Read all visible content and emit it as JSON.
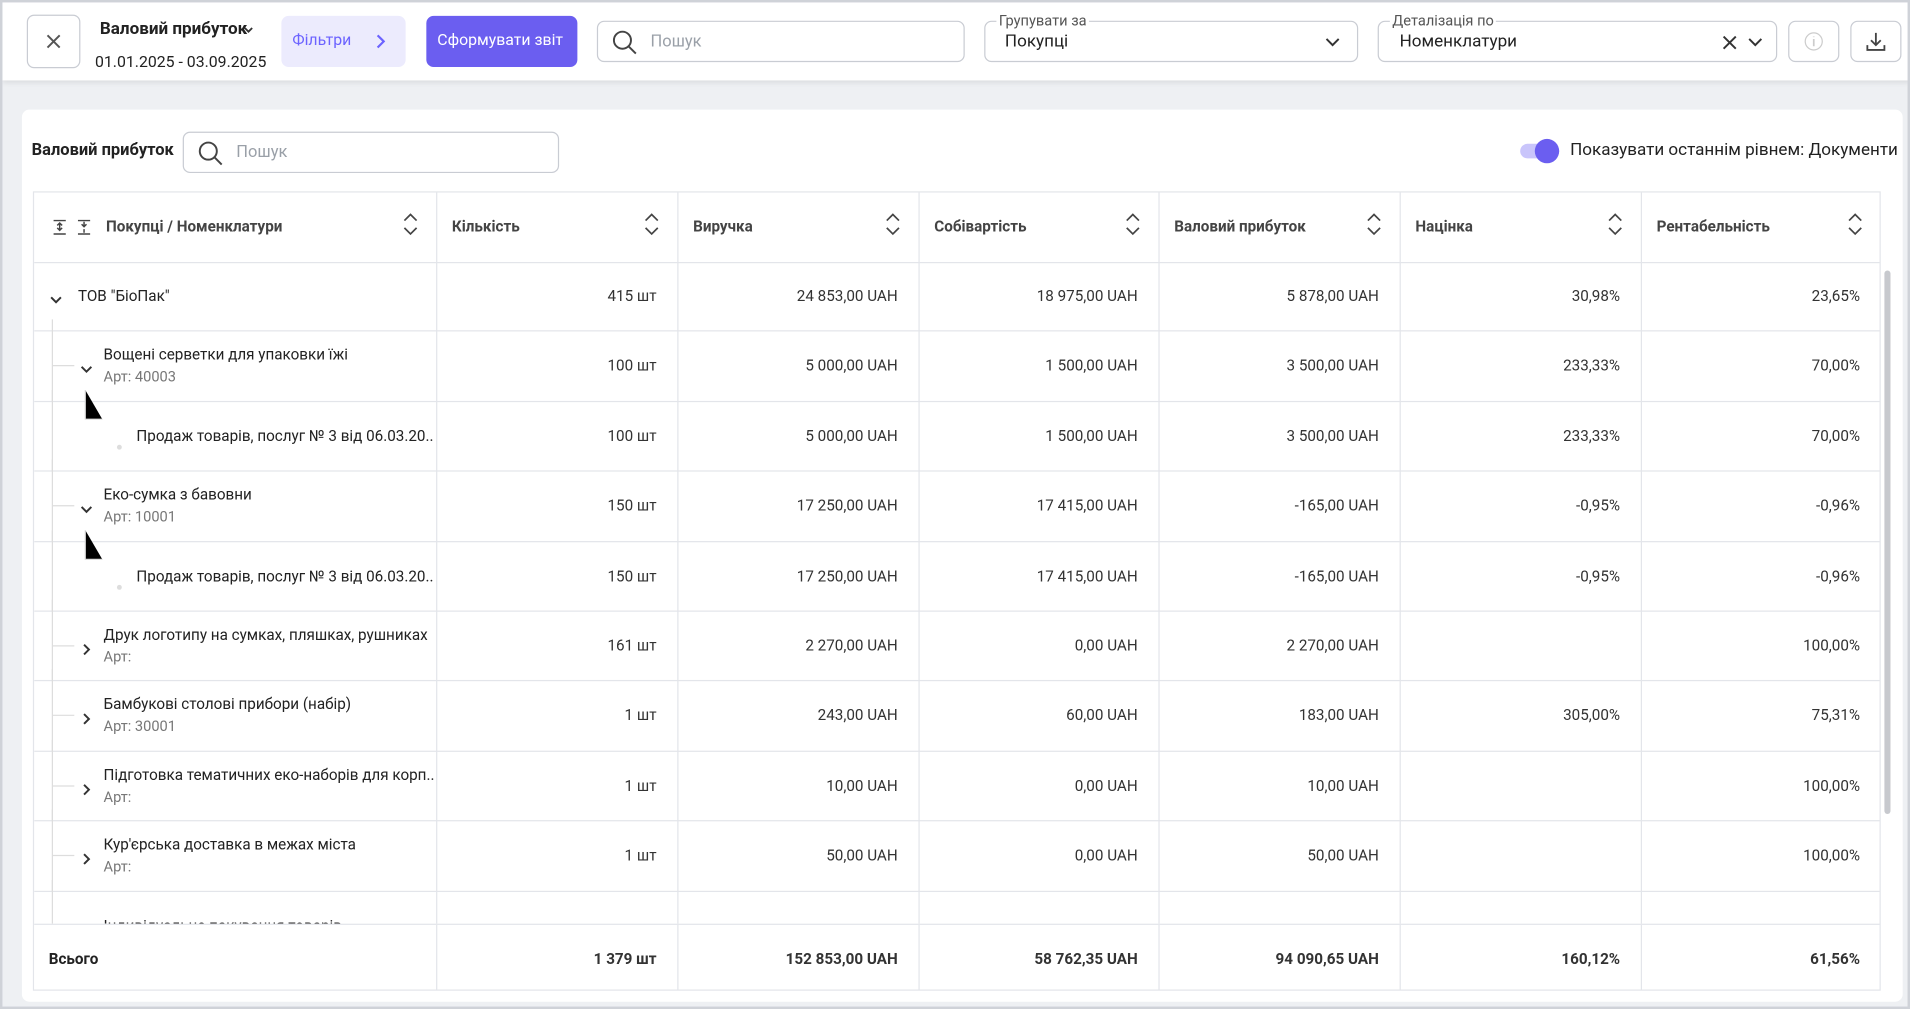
{
  "header": {
    "title": "Валовий прибуток",
    "period": "01.01.2025 - 03.09.2025",
    "filters": "Фільтри",
    "generate": "Сформувати звіт",
    "search_placeholder": "Пошук",
    "group_label": "Групувати за",
    "group_value": "Покупці",
    "detail_label": "Деталізація по",
    "detail_value": "Номенклатури"
  },
  "panel": {
    "title": "Валовий прибуток",
    "search_placeholder": "Пошук",
    "toggle_label": "Показувати останнім рівнем: Документи"
  },
  "table": {
    "columns": [
      "Покупці / Номенклатури",
      "Кількість",
      "Виручка",
      "Собівартість",
      "Валовий прибуток",
      "Націнка",
      "Рентабельність"
    ],
    "rows": [
      {
        "level": 0,
        "expanded": true,
        "name": "ТОВ \"БіоПак\"",
        "cells": [
          "415 шт",
          "24 853,00 UAH",
          "18 975,00 UAH",
          "5 878,00 UAH",
          "30,98%",
          "23,65%"
        ]
      },
      {
        "level": 1,
        "expanded": true,
        "name": "Вощені серветки для упаковки їжі",
        "sub": "Арт: 40003",
        "cells": [
          "100 шт",
          "5 000,00 UAH",
          "1 500,00 UAH",
          "3 500,00 UAH",
          "233,33%",
          "70,00%"
        ]
      },
      {
        "level": 2,
        "name": "Продаж товарів, послуг № 3 від 06.03.20...",
        "cells": [
          "100 шт",
          "5 000,00 UAH",
          "1 500,00 UAH",
          "3 500,00 UAH",
          "233,33%",
          "70,00%"
        ]
      },
      {
        "level": 1,
        "expanded": true,
        "name": "Еко-сумка з бавовни",
        "sub": "Арт: 10001",
        "cells": [
          "150 шт",
          "17 250,00 UAH",
          "17 415,00 UAH",
          "-165,00 UAH",
          "-0,95%",
          "-0,96%"
        ]
      },
      {
        "level": 2,
        "name": "Продаж товарів, послуг № 3 від 06.03.20...",
        "cells": [
          "150 шт",
          "17 250,00 UAH",
          "17 415,00 UAH",
          "-165,00 UAH",
          "-0,95%",
          "-0,96%"
        ]
      },
      {
        "level": 1,
        "expanded": false,
        "name": "Друк логотипу на сумках, пляшках, рушниках",
        "sub": "Арт:",
        "cells": [
          "161 шт",
          "2 270,00 UAH",
          "0,00 UAH",
          "2 270,00 UAH",
          null,
          "100,00%"
        ]
      },
      {
        "level": 1,
        "expanded": false,
        "name": "Бамбукові столові прибори (набір)",
        "sub": "Арт: 30001",
        "cells": [
          "1 шт",
          "243,00 UAH",
          "60,00 UAH",
          "183,00 UAH",
          "305,00%",
          "75,31%"
        ]
      },
      {
        "level": 1,
        "expanded": false,
        "name": "Підготовка тематичних еко-наборів для корп...",
        "sub": "Арт:",
        "cells": [
          "1 шт",
          "10,00 UAH",
          "0,00 UAH",
          "10,00 UAH",
          null,
          "100,00%"
        ]
      },
      {
        "level": 1,
        "expanded": false,
        "name": "Кур'єрська доставка в межах міста",
        "sub": "Арт:",
        "cells": [
          "1 шт",
          "50,00 UAH",
          "0,00 UAH",
          "50,00 UAH",
          null,
          "100,00%"
        ]
      },
      {
        "level": 1,
        "expanded": false,
        "name": "Індивідуальне пакування товарів"
      }
    ],
    "total": {
      "label": "Всього",
      "cells": [
        "1 379 шт",
        "152 853,00 UAH",
        "58 762,35 UAH",
        "94 090,65 UAH",
        "160,12%",
        "61,56%"
      ]
    }
  }
}
